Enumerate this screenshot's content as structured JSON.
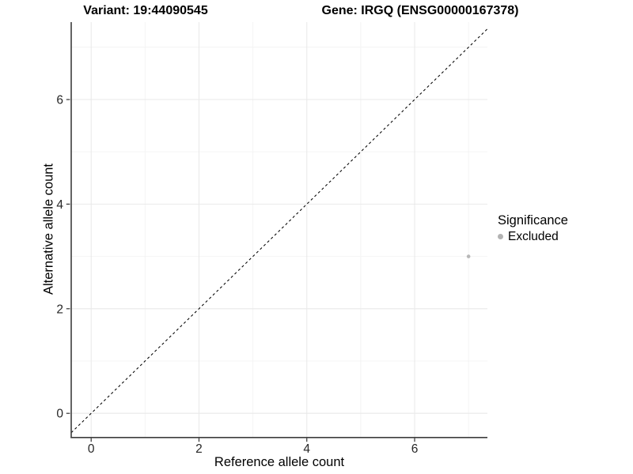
{
  "chart_data": {
    "type": "scatter",
    "title_left": "Variant: 19:44090545",
    "title_right": "Gene: IRGQ (ENSG00000167378)",
    "xlabel": "Reference allele count",
    "ylabel": "Alternative allele count",
    "xlim": [
      -0.37,
      7.35
    ],
    "ylim": [
      -0.45,
      7.48
    ],
    "x_ticks": [
      0,
      2,
      4,
      6
    ],
    "y_ticks": [
      0,
      2,
      4,
      6
    ],
    "x_minor_gridlines": [
      1,
      3,
      5,
      7
    ],
    "y_minor_gridlines": [
      1,
      3,
      5,
      7
    ],
    "grid": "on",
    "identity_line": {
      "equation": "y = x",
      "style": "dashed",
      "color": "#000000"
    },
    "series": [
      {
        "name": "Excluded",
        "color": "#b7b7b7",
        "point_radius": 2.3,
        "points": [
          {
            "x": 7,
            "y": 3
          }
        ]
      }
    ],
    "legend": {
      "title": "Significance",
      "position": "right",
      "items": [
        {
          "label": "Excluded",
          "color": "#b3b3b3"
        }
      ]
    },
    "colors": {
      "axis_line": "#3d3d3d",
      "tick_label": "#262626",
      "grid_major": "#e9e9e9",
      "grid_minor": "#f4f4f4",
      "title": "#000000"
    }
  }
}
